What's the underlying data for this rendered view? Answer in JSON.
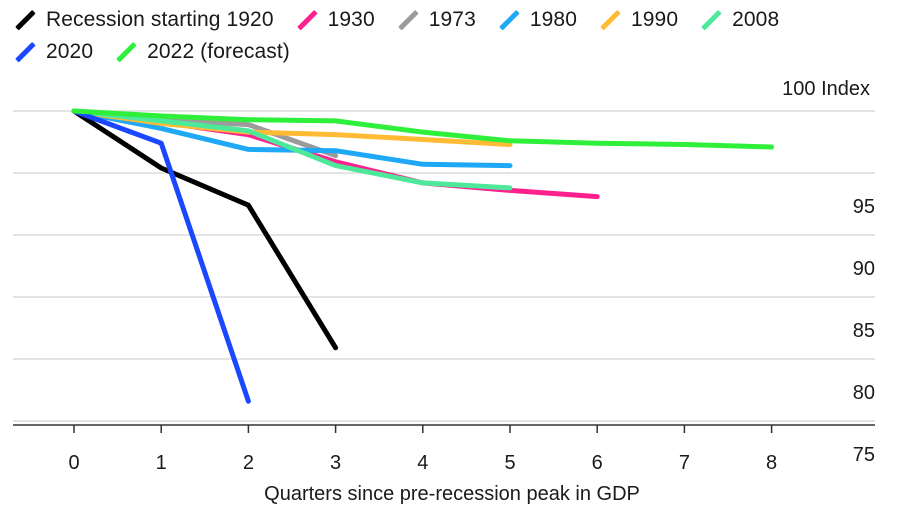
{
  "chart_data": {
    "type": "line",
    "title": "",
    "xlabel": "Quarters since pre-recession peak in GDP",
    "ylabel": "100 Index",
    "x_ticks": [
      "0",
      "1",
      "2",
      "3",
      "4",
      "5",
      "6",
      "7",
      "8"
    ],
    "y_ticks": [
      "75",
      "80",
      "85",
      "90",
      "95"
    ],
    "xlim": [
      0,
      8
    ],
    "ylim": [
      75,
      100
    ],
    "grid": "horizontal",
    "legend_position": "top-left",
    "series": [
      {
        "name": "Recession starting 1920",
        "color": "#000000",
        "x": [
          0,
          1,
          2,
          3
        ],
        "values": [
          100,
          95.4,
          92.4,
          80.9
        ]
      },
      {
        "name": "1930",
        "color": "#ff1f8e",
        "x": [
          0,
          1,
          2,
          3,
          4,
          5,
          6
        ],
        "values": [
          100,
          99.1,
          98.1,
          95.9,
          94.2,
          93.6,
          93.1
        ]
      },
      {
        "name": "1973",
        "color": "#9b9b9b",
        "x": [
          0,
          1,
          2,
          3
        ],
        "values": [
          100,
          99.3,
          98.9,
          96.4
        ]
      },
      {
        "name": "1980",
        "color": "#1fa8f5",
        "x": [
          0,
          1,
          2,
          3,
          4,
          5
        ],
        "values": [
          100,
          98.6,
          96.9,
          96.8,
          95.7,
          95.6
        ]
      },
      {
        "name": "1990",
        "color": "#ffbb33",
        "x": [
          0,
          1,
          2,
          3,
          4,
          5
        ],
        "values": [
          100,
          99.0,
          98.3,
          98.1,
          97.7,
          97.3
        ]
      },
      {
        "name": "2008",
        "color": "#4de89a",
        "x": [
          0,
          1,
          2,
          3,
          4,
          5
        ],
        "values": [
          100,
          99.2,
          98.4,
          95.6,
          94.2,
          93.8
        ]
      },
      {
        "name": "2020",
        "color": "#1a47ff",
        "x": [
          0,
          1,
          2
        ],
        "values": [
          100,
          97.4,
          76.6
        ]
      },
      {
        "name": "2022 (forecast)",
        "color": "#2ef03a",
        "x": [
          0,
          1,
          2,
          3,
          4,
          5,
          6,
          7,
          8
        ],
        "values": [
          100,
          99.6,
          99.3,
          99.2,
          98.3,
          97.6,
          97.4,
          97.3,
          97.1
        ]
      }
    ]
  },
  "legend": {
    "rows": [
      [
        {
          "label": "Recession starting 1920",
          "color": "#000000"
        },
        {
          "label": "1930",
          "color": "#ff1f8e"
        },
        {
          "label": "1973",
          "color": "#9b9b9b"
        },
        {
          "label": "1980",
          "color": "#1fa8f5"
        },
        {
          "label": "1990",
          "color": "#ffbb33"
        },
        {
          "label": "2008",
          "color": "#4de89a"
        }
      ],
      [
        {
          "label": "2020",
          "color": "#1a47ff"
        },
        {
          "label": "2022 (forecast)",
          "color": "#2ef03a"
        }
      ]
    ]
  },
  "axis": {
    "y_unit_label": "100 Index",
    "x_title": "Quarters since pre-recession peak in GDP"
  }
}
